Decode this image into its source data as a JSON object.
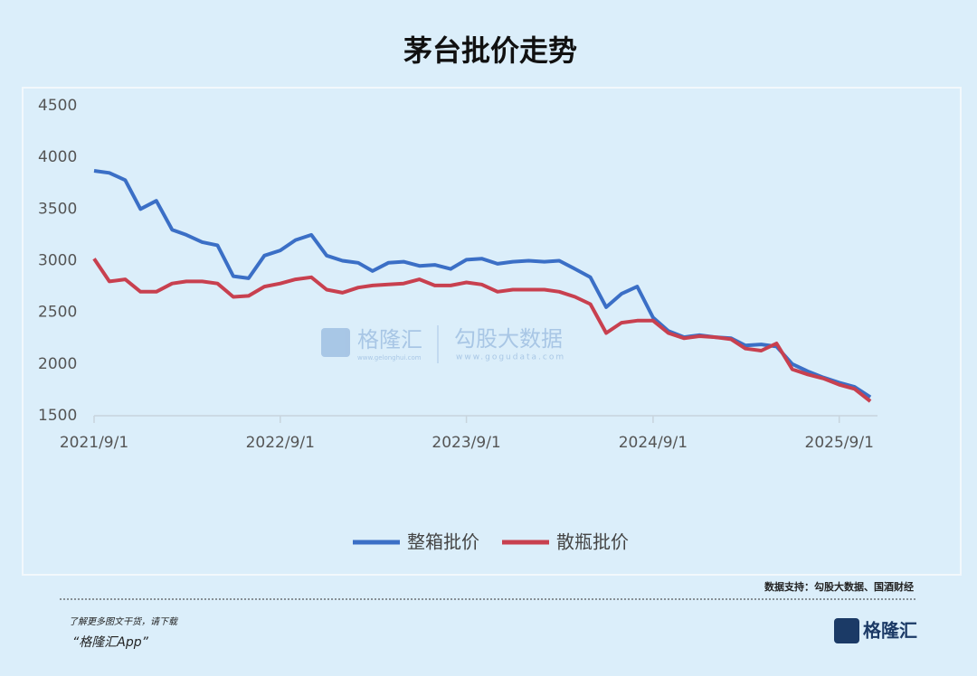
{
  "chart_data": {
    "type": "line",
    "title": "茅台批价走势",
    "x": [
      "2021/9/1",
      "2021/10/1",
      "2021/11/1",
      "2021/12/1",
      "2022/1/1",
      "2022/2/1",
      "2022/3/1",
      "2022/4/1",
      "2022/5/1",
      "2022/6/1",
      "2022/7/1",
      "2022/8/1",
      "2022/9/1",
      "2022/10/1",
      "2022/11/1",
      "2022/12/1",
      "2023/1/1",
      "2023/2/1",
      "2023/3/1",
      "2023/4/1",
      "2023/5/1",
      "2023/6/1",
      "2023/7/1",
      "2023/8/1",
      "2023/9/1",
      "2023/10/1",
      "2023/11/1",
      "2023/12/1",
      "2024/1/1",
      "2024/2/1",
      "2024/3/1",
      "2024/4/1",
      "2024/5/1",
      "2024/6/1",
      "2024/7/1",
      "2024/8/1",
      "2024/9/1",
      "2024/10/1",
      "2024/11/1",
      "2024/12/1",
      "2025/1/1",
      "2025/2/1",
      "2025/3/1",
      "2025/4/1",
      "2025/5/1",
      "2025/6/1",
      "2025/7/1",
      "2025/8/1",
      "2025/9/1",
      "2025/10/1",
      "2025/11/1"
    ],
    "series": [
      {
        "name": "整箱批价",
        "color": "#3b6fc6",
        "values": [
          3870,
          3850,
          3780,
          3500,
          3580,
          3300,
          3250,
          3180,
          3150,
          2850,
          2830,
          3050,
          3100,
          3200,
          3250,
          3050,
          3000,
          2980,
          2900,
          2980,
          2990,
          2950,
          2960,
          2920,
          3010,
          3020,
          2970,
          2990,
          3000,
          2990,
          3000,
          2920,
          2840,
          2550,
          2680,
          2750,
          2450,
          2320,
          2260,
          2280,
          2260,
          2250,
          2180,
          2190,
          2170,
          2000,
          1930,
          1870,
          1820,
          1780,
          1680
        ]
      },
      {
        "name": "散瓶批价",
        "color": "#c8404f",
        "values": [
          3020,
          2800,
          2820,
          2700,
          2700,
          2780,
          2800,
          2800,
          2780,
          2650,
          2660,
          2750,
          2780,
          2820,
          2840,
          2720,
          2690,
          2740,
          2760,
          2770,
          2780,
          2820,
          2760,
          2760,
          2790,
          2770,
          2700,
          2720,
          2720,
          2720,
          2700,
          2650,
          2580,
          2300,
          2400,
          2420,
          2420,
          2300,
          2250,
          2270,
          2260,
          2240,
          2150,
          2130,
          2200,
          1950,
          1900,
          1860,
          1800,
          1760,
          1640
        ]
      }
    ],
    "xlim": [
      "2021/9/1",
      "2025/11/15"
    ],
    "xticks": [
      "2021/9/1",
      "2022/9/1",
      "2023/9/1",
      "2024/9/1",
      "2025/9/1"
    ],
    "ylim": [
      1500,
      4500
    ],
    "yticks": [
      1500,
      2000,
      2500,
      3000,
      3500,
      4000,
      4500
    ],
    "grid": false
  },
  "watermark": {
    "brand": "格隆汇",
    "brand_url": "www.gelonghui.com",
    "source": "勾股大数据",
    "source_url": "www.gogudata.com"
  },
  "footer": {
    "source": "数据支持：勾股大数据、国酒财经",
    "promo": "了解更多图文干货，请下载",
    "app": "“格隆汇App”",
    "logo": "格隆汇"
  }
}
